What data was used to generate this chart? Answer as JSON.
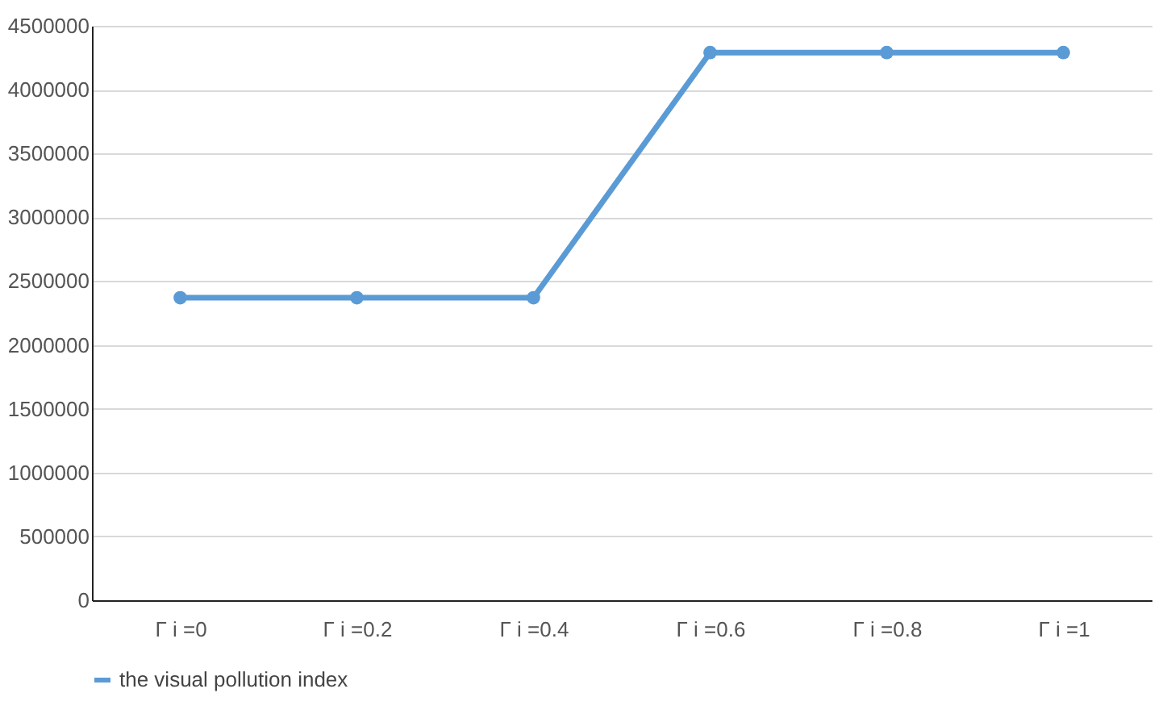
{
  "chart_data": {
    "type": "line",
    "categories": [
      "Γ i =0",
      "Γ i =0.2",
      "Γ i =0.4",
      "Γ i =0.6",
      "Γ i =0.8",
      "Γ i =1"
    ],
    "series": [
      {
        "name": "the visual pollution index",
        "color": "#5b9bd5",
        "values": [
          2370000,
          2370000,
          2370000,
          4290000,
          4290000,
          4290000
        ]
      }
    ],
    "ylim": [
      0,
      4500000
    ],
    "yticks": [
      0,
      500000,
      1000000,
      1500000,
      2000000,
      2500000,
      3000000,
      3500000,
      4000000,
      4500000
    ],
    "grid": "y",
    "legend": "bottom",
    "marker": "circle",
    "line_style": "solid"
  }
}
